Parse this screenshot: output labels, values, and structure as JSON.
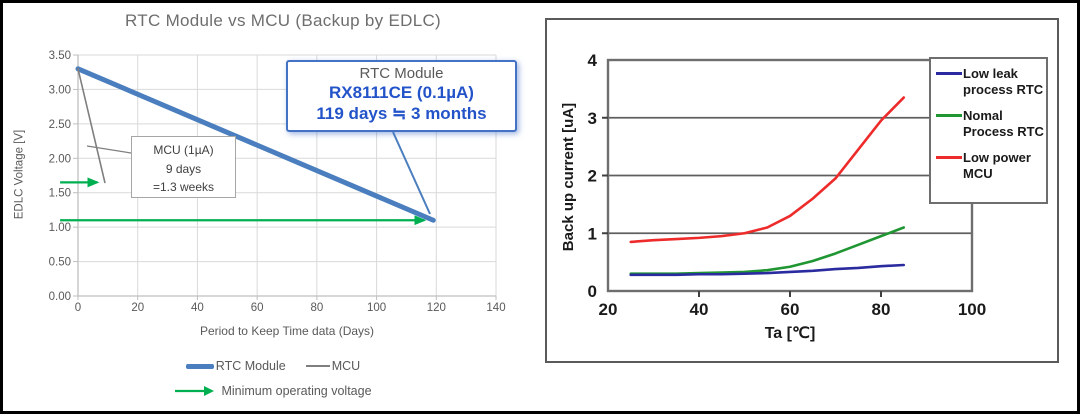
{
  "left_chart": {
    "title": "RTC Module vs MCU (Backup by EDLC)",
    "x_axis_title": "Period to Keep Time data (Days)",
    "y_axis_title": "EDLC Voltage [V]",
    "legend": {
      "rtc": "RTC Module",
      "mcu": "MCU",
      "min_voltage": "Minimum operating voltage"
    },
    "annotation_rtc": {
      "line1": "RTC Module",
      "line2": "RX8111CE (0.1µA)",
      "line3": "119 days ≒ 3 months"
    },
    "annotation_mcu": {
      "line1": "MCU (1µA)",
      "line2": "9 days",
      "line3": "=1.3 weeks"
    }
  },
  "right_chart": {
    "x_axis_title": "Ta [℃]",
    "y_axis_title": "Back up current [uA]",
    "legend": [
      {
        "label": "Low leak\nprocess RTC"
      },
      {
        "label": "Nomal\nProcess RTC"
      },
      {
        "label": "Low power\nMCU"
      }
    ]
  },
  "colors": {
    "rtc_blue": "#4a7ebe",
    "mcu_gray": "#7f7f7f",
    "arrow_green": "#00b050",
    "annotation_blue_text": "#2353c9",
    "annotation_border_blue": "#4472c4",
    "grid_light": "#d9d9d9",
    "axis_gray": "#bfbfbf",
    "right_navy": "#2b2ba0",
    "right_green": "#1f9632",
    "right_red": "#ee2b2b",
    "right_grid": "#5f5f5f",
    "right_border": "#6e6e6e"
  },
  "chart_data": [
    {
      "id": "left",
      "type": "line",
      "title": "RTC Module vs MCU (Backup by EDLC)",
      "xlabel": "Period to Keep Time data (Days)",
      "ylabel": "EDLC Voltage [V]",
      "xlim": [
        0,
        140
      ],
      "ylim": [
        0,
        3.5
      ],
      "x_ticks": [
        0,
        20,
        40,
        60,
        80,
        100,
        120,
        140
      ],
      "y_ticks": [
        0,
        0.5,
        1,
        1.5,
        2,
        2.5,
        3,
        3.5
      ],
      "y_tick_decimals": 2,
      "grid": "both",
      "legend_position": "bottom",
      "series": [
        {
          "name": "RTC Module",
          "color": "#4a7ebe",
          "width": 5,
          "points": [
            [
              0,
              3.3
            ],
            [
              119,
              1.1
            ]
          ]
        },
        {
          "name": "MCU",
          "color": "#7f7f7f",
          "width": 1.6,
          "points": [
            [
              0,
              3.3
            ],
            [
              9,
              1.65
            ]
          ]
        }
      ],
      "min_operating_voltage": 1.1,
      "arrows": [
        {
          "name": "mcu-end-arrow",
          "y": 1.65,
          "x_start": -6,
          "x_end": 9.5
        },
        {
          "name": "min-voltage-arrow",
          "y": 1.1,
          "x_start": -6,
          "x_end": 119
        }
      ]
    },
    {
      "id": "right",
      "type": "line",
      "xlabel": "Ta [℃]",
      "ylabel": "Back up current [uA]",
      "xlim": [
        20,
        100
      ],
      "ylim": [
        0,
        4
      ],
      "x_ticks": [
        20,
        40,
        60,
        80,
        100
      ],
      "y_ticks": [
        0,
        1,
        2,
        3,
        4
      ],
      "y_tick_decimals": 0,
      "grid": "horizontal",
      "legend_position": "top-right",
      "x": [
        25,
        30,
        35,
        40,
        45,
        50,
        55,
        60,
        65,
        70,
        75,
        80,
        85
      ],
      "series": [
        {
          "name": "Low leak process RTC",
          "color": "#2b2ba0",
          "values": [
            0.28,
            0.28,
            0.28,
            0.29,
            0.29,
            0.3,
            0.31,
            0.33,
            0.35,
            0.38,
            0.4,
            0.43,
            0.45
          ]
        },
        {
          "name": "Nomal Process RTC",
          "color": "#1f9632",
          "values": [
            0.3,
            0.3,
            0.3,
            0.31,
            0.32,
            0.33,
            0.36,
            0.42,
            0.52,
            0.65,
            0.8,
            0.95,
            1.1
          ]
        },
        {
          "name": "Low power MCU",
          "color": "#ee2b2b",
          "values": [
            0.85,
            0.88,
            0.9,
            0.92,
            0.95,
            1.0,
            1.1,
            1.3,
            1.6,
            1.95,
            2.45,
            2.95,
            3.35
          ]
        }
      ]
    }
  ]
}
